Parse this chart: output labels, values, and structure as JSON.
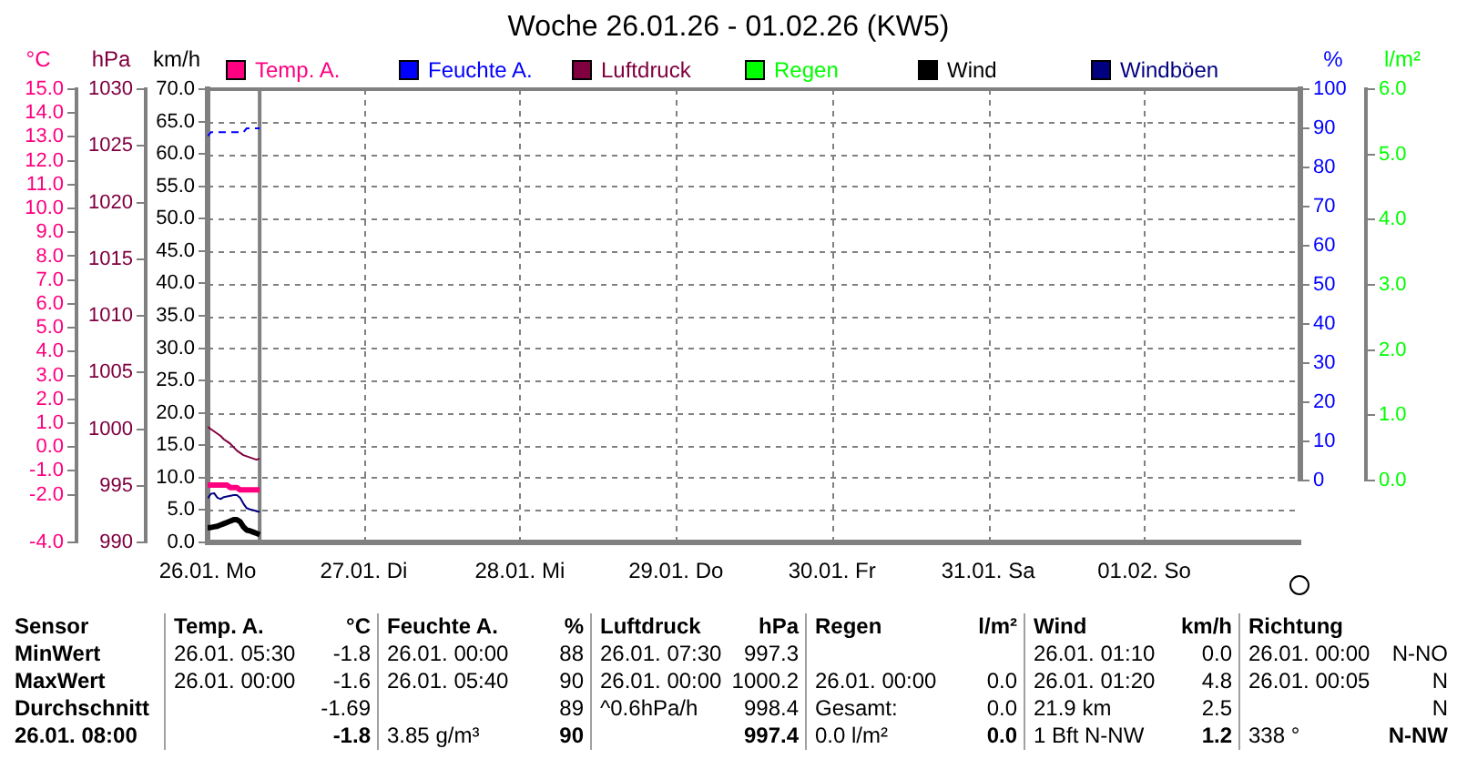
{
  "chart_data": [
    {
      "type": "line",
      "title": "Woche 26.01.26 - 01.02.26 (KW5)",
      "ylabel": "km/h",
      "y2label": "°C",
      "y3label": "hPa",
      "x": [
        "--01-26T00:00",
        "--01-26T00:30",
        "--01-26T01:00",
        "--01-26T01:30",
        "--01-26T02:00",
        "--01-26T02:30",
        "--01-26T03:00",
        "--01-26T03:30",
        "--01-26T04:00",
        "--01-26T04:30",
        "--01-26T05:00",
        "--01-26T05:30",
        "--01-26T06:00",
        "--01-26T06:30",
        "--01-26T07:00",
        "--01-26T07:30",
        "--01-26T08:00"
      ],
      "series": [
        {
          "name": "Temp. A.",
          "color": "#ff0080",
          "axis": "y2",
          "values": [
            -1.6,
            -1.6,
            -1.6,
            -1.6,
            -1.6,
            -1.6,
            -1.6,
            -1.7,
            -1.7,
            -1.7,
            -1.8,
            -1.8,
            -1.8,
            -1.8,
            -1.8,
            -1.8,
            -1.8
          ]
        },
        {
          "name": "Luftdruck",
          "color": "#800040",
          "axis": "y3",
          "values": [
            1000.2,
            1000.0,
            999.8,
            999.6,
            999.4,
            999.1,
            998.9,
            998.7,
            998.4,
            998.1,
            997.9,
            997.7,
            997.6,
            997.5,
            997.4,
            997.3,
            997.4
          ]
        },
        {
          "name": "Wind",
          "color": "#000000",
          "values": [
            2.3,
            2.3,
            2.4,
            2.5,
            2.7,
            2.9,
            3.1,
            3.3,
            3.5,
            3.5,
            3.2,
            2.4,
            1.9,
            1.8,
            1.6,
            1.4,
            1.2
          ]
        },
        {
          "name": "Windböen",
          "color": "#000080",
          "values": [
            6.8,
            7.5,
            7.6,
            6.9,
            6.7,
            7.0,
            7.1,
            7.2,
            7.3,
            7.3,
            6.9,
            6.0,
            5.3,
            5.1,
            5.0,
            4.8,
            4.7
          ]
        }
      ],
      "xlim": [
        "--01-26",
        "--02-02"
      ],
      "xticks": [
        {
          "value": "--01-26",
          "label": "26.01. Mo"
        },
        {
          "value": "--01-27",
          "label": "27.01. Di"
        },
        {
          "value": "--01-28",
          "label": "28.01. Mi"
        },
        {
          "value": "--01-29",
          "label": "29.01. Do"
        },
        {
          "value": "--01-30",
          "label": "30.01. Fr"
        },
        {
          "value": "--01-31",
          "label": "31.01. Sa"
        },
        {
          "value": "--02-01",
          "label": "01.02. So"
        }
      ],
      "ylim": [
        0,
        70
      ],
      "yticks": [
        {
          "value": 0,
          "label": "0.0"
        },
        {
          "value": 5,
          "label": "5.0"
        },
        {
          "value": 10,
          "label": "10.0"
        },
        {
          "value": 15,
          "label": "15.0"
        },
        {
          "value": 20,
          "label": "20.0"
        },
        {
          "value": 25,
          "label": "25.0"
        },
        {
          "value": 30,
          "label": "30.0"
        },
        {
          "value": 35,
          "label": "35.0"
        },
        {
          "value": 40,
          "label": "40.0"
        },
        {
          "value": 45,
          "label": "45.0"
        },
        {
          "value": 50,
          "label": "50.0"
        },
        {
          "value": 55,
          "label": "55.0"
        },
        {
          "value": 60,
          "label": "60.0"
        },
        {
          "value": 65,
          "label": "65.0"
        },
        {
          "value": 70,
          "label": "70.0"
        }
      ],
      "y2lim": [
        -4,
        15
      ],
      "y2ticks": [
        {
          "value": -4,
          "label": "-4.0"
        },
        {
          "value": -2,
          "label": "-2.0"
        },
        {
          "value": -1,
          "label": "-1.0"
        },
        {
          "value": 0,
          "label": "0.0"
        },
        {
          "value": 1,
          "label": "1.0"
        },
        {
          "value": 2,
          "label": "2.0"
        },
        {
          "value": 3,
          "label": "3.0"
        },
        {
          "value": 4,
          "label": "4.0"
        },
        {
          "value": 5,
          "label": "5.0"
        },
        {
          "value": 6,
          "label": "6.0"
        },
        {
          "value": 7,
          "label": "7.0"
        },
        {
          "value": 8,
          "label": "8.0"
        },
        {
          "value": 9,
          "label": "9.0"
        },
        {
          "value": 10,
          "label": "10.0"
        },
        {
          "value": 11,
          "label": "11.0"
        },
        {
          "value": 12,
          "label": "12.0"
        },
        {
          "value": 13,
          "label": "13.0"
        },
        {
          "value": 14,
          "label": "14.0"
        },
        {
          "value": 15,
          "label": "15.0"
        }
      ],
      "y3lim": [
        990,
        1030
      ],
      "y3ticks": [
        990,
        995,
        1000,
        1005,
        1010,
        1015,
        1020,
        1025,
        1030
      ],
      "ref_lines": [
        {
          "axis": "x",
          "value": "--01-26T08:00",
          "color": "#808080"
        }
      ],
      "grid": true,
      "legend": "top"
    },
    {
      "type": "line",
      "ylabel": "%",
      "y2label": "l/m²",
      "x": [
        "--01-26T00:00",
        "--01-26T00:30",
        "--01-26T01:00",
        "--01-26T01:30",
        "--01-26T02:00",
        "--01-26T02:30",
        "--01-26T03:00",
        "--01-26T03:30",
        "--01-26T04:00",
        "--01-26T04:30",
        "--01-26T05:00",
        "--01-26T05:30",
        "--01-26T06:00",
        "--01-26T06:30",
        "--01-26T07:00",
        "--01-26T07:30",
        "--01-26T08:00"
      ],
      "series": [
        {
          "name": "Feuchte A.",
          "color": "#0000ff",
          "line_style": "dashed",
          "values": [
            88,
            89,
            89,
            89,
            89,
            89,
            89,
            89,
            89,
            89,
            89,
            89,
            90,
            90,
            90,
            90,
            90
          ]
        },
        {
          "name": "Regen",
          "color": "#00ff00",
          "axis": "y2",
          "values": [
            null,
            null,
            null,
            null,
            null,
            null,
            null,
            null,
            null,
            null,
            null,
            null,
            null,
            null,
            null,
            null,
            null
          ]
        }
      ],
      "xlim": [
        "--01-26",
        "--02-02"
      ],
      "ylim": [
        0,
        100
      ],
      "yticks": [
        0,
        10,
        20,
        30,
        40,
        50,
        60,
        70,
        80,
        90,
        100
      ],
      "y2lim": [
        0,
        6
      ],
      "y2ticks": [
        {
          "value": 0,
          "label": "0.0"
        },
        {
          "value": 1,
          "label": "1.0"
        },
        {
          "value": 2,
          "label": "2.0"
        },
        {
          "value": 3,
          "label": "3.0"
        },
        {
          "value": 4,
          "label": "4.0"
        },
        {
          "value": 5,
          "label": "5.0"
        },
        {
          "value": 6,
          "label": "6.0"
        }
      ],
      "tick_labels": "y",
      "legend": "top"
    },
    {
      "type": "other",
      "ylabel": "Sensor",
      "categories": [
        "Temp. A.",
        "°C",
        "Feuchte A.",
        "%",
        "Luftdruck",
        "hPa",
        "Regen",
        "l/m²",
        "Wind",
        "km/h",
        "Richtung",
        null
      ],
      "y_categories": [
        "MinWert",
        "MaxWert",
        "Durchschnitt",
        "26.01. 08:00"
      ],
      "cell_labels": [
        [
          "26.01. 05:30",
          "-1.8",
          "26.01. 00:00",
          "88",
          "26.01. 07:30",
          "997.3",
          null,
          null,
          "26.01. 01:10",
          "0.0",
          "26.01. 00:00",
          "N-NO"
        ],
        [
          "26.01. 00:00",
          "-1.6",
          "26.01. 05:40",
          "90",
          "26.01. 00:00",
          "1000.2",
          "26.01. 00:00",
          "0.0",
          "26.01. 01:20",
          "4.8",
          "26.01. 00:05",
          "N"
        ],
        [
          null,
          "-1.69",
          null,
          "89",
          "^0.6hPa/h",
          "998.4",
          "Gesamt:",
          "0.0",
          "21.9 km",
          "2.5",
          null,
          "N"
        ],
        [
          null,
          "-1.8",
          "3.85 g/m³",
          "90",
          null,
          "997.4",
          "0.0 l/m²",
          "0.0",
          "1 Bft N-NW",
          "1.2",
          "338 °",
          "N-NW"
        ]
      ]
    }
  ]
}
